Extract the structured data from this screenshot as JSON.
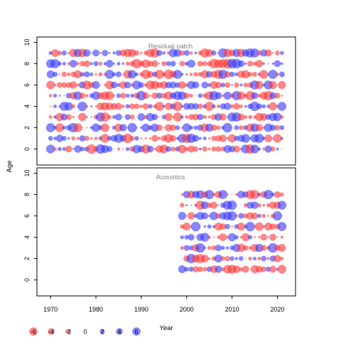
{
  "chart_data": {
    "type": "bubble",
    "ylabel_shared": "Age",
    "xlabel": "Year",
    "panels": [
      {
        "title": "Residual catch",
        "x_range": [
          1970,
          2021
        ],
        "ylim": [
          -1.5,
          10.5
        ],
        "ages": [
          0,
          1,
          2,
          3,
          4,
          5,
          6,
          7,
          8,
          9
        ],
        "yticks": [
          0,
          2,
          4,
          6,
          8,
          10
        ]
      },
      {
        "title": "Acoustics",
        "x_range": [
          1999,
          2021
        ],
        "ylim": [
          -1.5,
          10.5
        ],
        "ages": [
          1,
          2,
          3,
          4,
          5,
          6,
          7,
          8
        ],
        "yticks": [
          0,
          2,
          4,
          6,
          8,
          10
        ]
      }
    ],
    "xticks": [
      1970,
      1980,
      1990,
      2000,
      2010,
      2020
    ],
    "xlim": [
      1967,
      2024
    ],
    "legend": {
      "placement": "bottom-left",
      "values": [
        -6,
        -4,
        -2,
        0,
        2,
        4,
        6
      ]
    },
    "note": "Bubble area proportional to residual magnitude; red = negative, blue = positive."
  },
  "colors": {
    "negative": "#FF3333",
    "positive": "#3333FF",
    "axis": "#000000",
    "panel_title": "#808080"
  }
}
